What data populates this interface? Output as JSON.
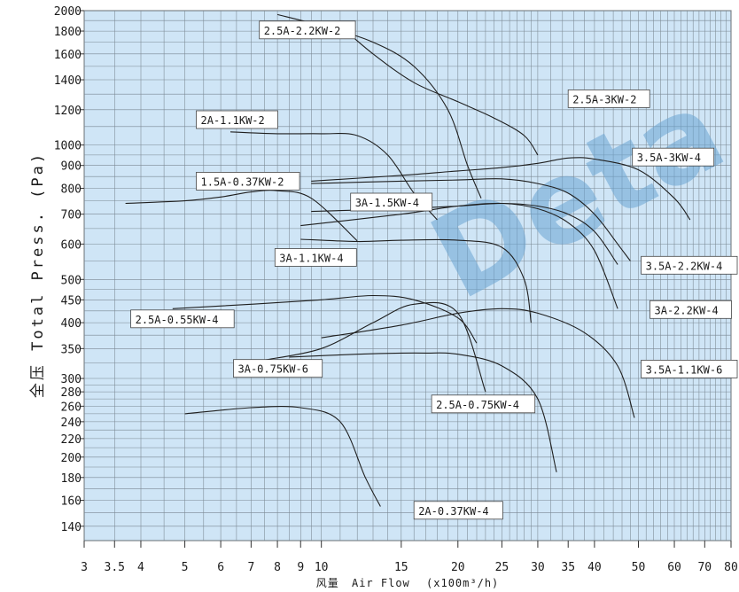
{
  "watermark": "Deta",
  "chart_data": {
    "type": "line",
    "xscale": "log",
    "yscale": "log",
    "xlim": [
      3,
      80
    ],
    "ylim": [
      130,
      2000
    ],
    "grid": true,
    "ylabel": "全压 Total Press. (Pa)",
    "xlabel_cn": "风量",
    "xlabel_en": "Air Flow",
    "xlabel_unit": "(x100m³/h)",
    "x_ticks": [
      3,
      3.5,
      4,
      5,
      6,
      7,
      8,
      9,
      10,
      15,
      20,
      25,
      30,
      35,
      40,
      50,
      60,
      70,
      80
    ],
    "x_tick_labels": [
      "3",
      "3.5",
      "4",
      "5",
      "6",
      "7",
      "8",
      "9",
      "10",
      "15",
      "20",
      "25",
      "30",
      "35",
      "40",
      "50",
      "60",
      "70",
      "80"
    ],
    "y_ticks": [
      140,
      160,
      180,
      200,
      220,
      240,
      260,
      280,
      300,
      350,
      400,
      450,
      500,
      600,
      700,
      800,
      900,
      1000,
      1200,
      1400,
      1600,
      1800,
      2000
    ],
    "y_tick_labels": [
      "140",
      "160",
      "180",
      "200",
      "220",
      "240",
      "260",
      "280",
      "300",
      "350",
      "400",
      "450",
      "500",
      "600",
      "700",
      "800",
      "900",
      "1000",
      "1200",
      "1400",
      "1600",
      "1800",
      "2000"
    ],
    "series": [
      {
        "name": "2.5A-2.2KW-2",
        "label_text": "2.5A-2.2KW-2",
        "label_at": [
          7.3,
          1810
        ],
        "points": [
          [
            8.0,
            1960
          ],
          [
            10,
            1850
          ],
          [
            13,
            1700
          ],
          [
            16,
            1500
          ],
          [
            19,
            1200
          ],
          [
            21,
            900
          ],
          [
            22.5,
            760
          ]
        ]
      },
      {
        "name": "2.5A-3KW-2",
        "label_text": "2.5A-3KW-2",
        "label_at": [
          35,
          1270
        ],
        "points": [
          [
            11,
            1850
          ],
          [
            13,
            1600
          ],
          [
            16,
            1380
          ],
          [
            20,
            1250
          ],
          [
            24,
            1150
          ],
          [
            28,
            1050
          ],
          [
            30,
            950
          ]
        ]
      },
      {
        "name": "2A-1.1KW-2",
        "label_text": "2A-1.1KW-2",
        "label_at": [
          5.3,
          1140
        ],
        "points": [
          [
            6.3,
            1070
          ],
          [
            8,
            1060
          ],
          [
            10,
            1060
          ],
          [
            12,
            1050
          ],
          [
            14,
            950
          ],
          [
            16,
            780
          ],
          [
            18,
            680
          ]
        ]
      },
      {
        "name": "1.5A-0.37KW-2",
        "label_text": "1.5A-0.37KW-2",
        "label_at": [
          5.3,
          830
        ],
        "points": [
          [
            3.7,
            740
          ],
          [
            5,
            750
          ],
          [
            6,
            765
          ],
          [
            7,
            785
          ],
          [
            8,
            790
          ],
          [
            9.5,
            760
          ],
          [
            12,
            610
          ]
        ]
      },
      {
        "name": "3.5A-3KW-4",
        "label_text": "3.5A-3KW-4",
        "label_at": [
          48.5,
          940
        ],
        "points": [
          [
            9.5,
            830
          ],
          [
            15,
            855
          ],
          [
            20,
            875
          ],
          [
            25,
            890
          ],
          [
            30,
            910
          ],
          [
            35,
            935
          ],
          [
            40,
            930
          ],
          [
            50,
            880
          ],
          [
            60,
            760
          ],
          [
            65,
            680
          ]
        ]
      },
      {
        "name": "3A-1.5KW-4",
        "label_text": "3A-1.5KW-4",
        "label_at": [
          11.6,
          745
        ],
        "points": [
          [
            9.5,
            820
          ],
          [
            15,
            830
          ],
          [
            20,
            835
          ],
          [
            25,
            840
          ],
          [
            30,
            820
          ],
          [
            35,
            780
          ],
          [
            40,
            700
          ],
          [
            45,
            600
          ],
          [
            48,
            550
          ]
        ]
      },
      {
        "name": "3.5A-2.2KW-4",
        "label_text": "3.5A-2.2KW-4",
        "label_at": [
          55.5,
          538
        ],
        "points": [
          [
            9.5,
            710
          ],
          [
            15,
            720
          ],
          [
            20,
            730
          ],
          [
            25,
            740
          ],
          [
            30,
            730
          ],
          [
            35,
            700
          ],
          [
            40,
            640
          ],
          [
            45,
            540
          ]
        ]
      },
      {
        "name": "3A-2.2KW-4",
        "label_text": "3A-2.2KW-4",
        "label_at": [
          53,
          428
        ],
        "points": [
          [
            9,
            660
          ],
          [
            15,
            700
          ],
          [
            20,
            730
          ],
          [
            25,
            740
          ],
          [
            30,
            720
          ],
          [
            35,
            670
          ],
          [
            40,
            580
          ],
          [
            45,
            430
          ]
        ]
      },
      {
        "name": "3A-1.1KW-4",
        "label_text": "3A-1.1KW-4",
        "label_at": [
          7.9,
          560
        ],
        "points": [
          [
            9,
            615
          ],
          [
            12,
            608
          ],
          [
            15,
            612
          ],
          [
            20,
            612
          ],
          [
            25,
            590
          ],
          [
            28,
            500
          ],
          [
            29,
            400
          ]
        ]
      },
      {
        "name": "2.5A-0.55KW-4",
        "label_text": "2.5A-0.55KW-4",
        "label_at": [
          3.8,
          408
        ],
        "points": [
          [
            4.7,
            430
          ],
          [
            7,
            440
          ],
          [
            10,
            450
          ],
          [
            13,
            460
          ],
          [
            16,
            450
          ],
          [
            20,
            410
          ],
          [
            22,
            360
          ]
        ]
      },
      {
        "name": "3.5A-1.1KW-6",
        "label_text": "3.5A-1.1KW-6",
        "label_at": [
          58,
          315
        ],
        "points": [
          [
            10,
            370
          ],
          [
            15,
            395
          ],
          [
            20,
            420
          ],
          [
            25,
            430
          ],
          [
            30,
            420
          ],
          [
            38,
            380
          ],
          [
            45,
            320
          ],
          [
            49,
            245
          ]
        ]
      },
      {
        "name": "3A-0.75KW-6",
        "label_text": "3A-0.75KW-6",
        "label_at": [
          6.4,
          316
        ],
        "points": [
          [
            7.5,
            330
          ],
          [
            10,
            350
          ],
          [
            13,
            400
          ],
          [
            16,
            440
          ],
          [
            20,
            420
          ],
          [
            23,
            280
          ]
        ]
      },
      {
        "name": "2.5A-0.75KW-4",
        "label_text": "2.5A-0.75KW-4",
        "label_at": [
          17.5,
          263
        ],
        "points": [
          [
            8.5,
            335
          ],
          [
            12,
            340
          ],
          [
            15,
            342
          ],
          [
            17,
            342
          ],
          [
            20,
            340
          ],
          [
            25,
            320
          ],
          [
            30,
            270
          ],
          [
            33,
            185
          ]
        ]
      },
      {
        "name": "2A-0.37KW-4",
        "label_text": "2A-0.37KW-4",
        "label_at": [
          16,
          152
        ],
        "points": [
          [
            5,
            250
          ],
          [
            7,
            258
          ],
          [
            9,
            258
          ],
          [
            11,
            240
          ],
          [
            12.5,
            180
          ],
          [
            13.5,
            155
          ]
        ]
      }
    ]
  }
}
